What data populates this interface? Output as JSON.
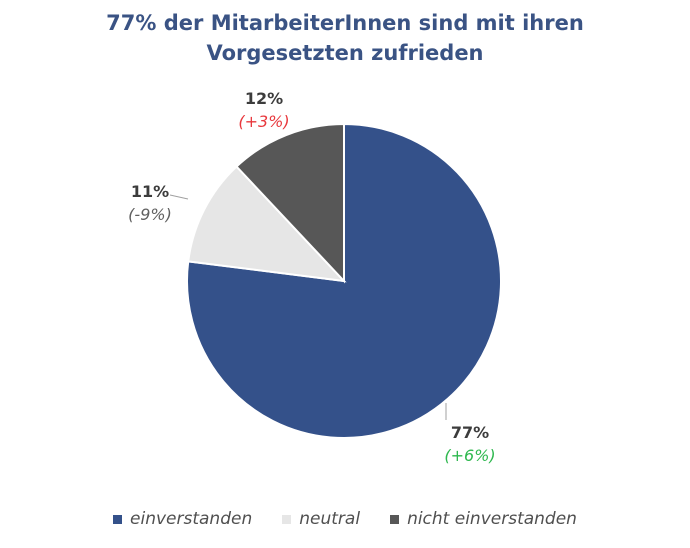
{
  "title": {
    "line1": "77% der MitarbeiterInnen sind mit ihren",
    "line2": "Vorgesetzten zufrieden"
  },
  "colors": {
    "title": "#3a5384",
    "positive": "#2fb84f",
    "negative": "#e8383d",
    "neutral_change": "#606060"
  },
  "chart_data": {
    "type": "pie",
    "title": "77% der MitarbeiterInnen sind mit ihren Vorgesetzten zufrieden",
    "slices": [
      {
        "name": "einverstanden",
        "value": 77,
        "label": "77%",
        "change": "(+6%)",
        "change_sign": "positive",
        "color": "#34518a"
      },
      {
        "name": "neutral",
        "value": 11,
        "label": "11%",
        "change": "(-9%)",
        "change_sign": "neutral",
        "color": "#e6e6e6"
      },
      {
        "name": "nicht einverstanden",
        "value": 12,
        "label": "12%",
        "change": "(+3%)",
        "change_sign": "negative",
        "color": "#575757"
      }
    ],
    "legend_position": "bottom"
  }
}
